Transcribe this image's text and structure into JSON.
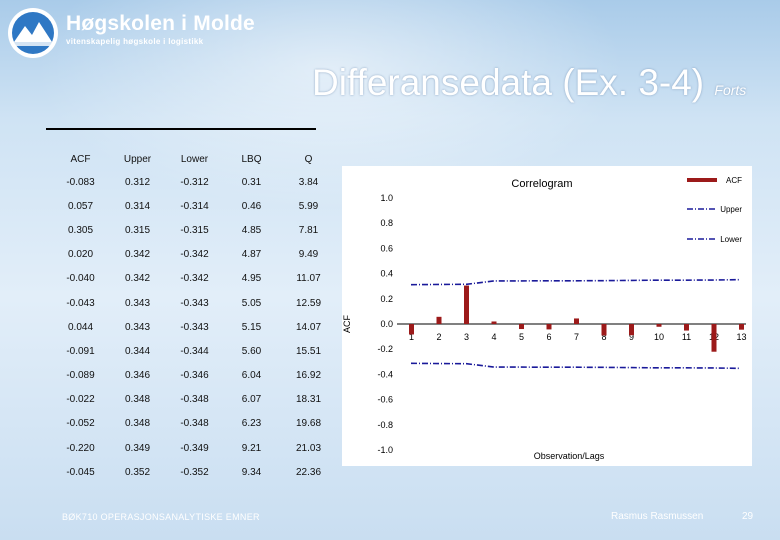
{
  "header": {
    "logo_name": "Høgskolen i Molde",
    "logo_sub": "vitenskapelig høgskole i logistikk",
    "title_main": "Differansedata (Ex. 3-4)",
    "title_suffix": "Forts"
  },
  "table": {
    "columns": [
      "ACF",
      "Upper",
      "Lower",
      "LBQ",
      "Q"
    ],
    "rows": [
      [
        "-0.083",
        "0.312",
        "-0.312",
        "0.31",
        "3.84"
      ],
      [
        "0.057",
        "0.314",
        "-0.314",
        "0.46",
        "5.99"
      ],
      [
        "0.305",
        "0.315",
        "-0.315",
        "4.85",
        "7.81"
      ],
      [
        "0.020",
        "0.342",
        "-0.342",
        "4.87",
        "9.49"
      ],
      [
        "-0.040",
        "0.342",
        "-0.342",
        "4.95",
        "11.07"
      ],
      [
        "-0.043",
        "0.343",
        "-0.343",
        "5.05",
        "12.59"
      ],
      [
        "0.044",
        "0.343",
        "-0.343",
        "5.15",
        "14.07"
      ],
      [
        "-0.091",
        "0.344",
        "-0.344",
        "5.60",
        "15.51"
      ],
      [
        "-0.089",
        "0.346",
        "-0.346",
        "6.04",
        "16.92"
      ],
      [
        "-0.022",
        "0.348",
        "-0.348",
        "6.07",
        "18.31"
      ],
      [
        "-0.052",
        "0.348",
        "-0.348",
        "6.23",
        "19.68"
      ],
      [
        "-0.220",
        "0.349",
        "-0.349",
        "9.21",
        "21.03"
      ],
      [
        "-0.045",
        "0.352",
        "-0.352",
        "9.34",
        "22.36"
      ]
    ]
  },
  "chart_data": {
    "type": "bar",
    "title": "Correlogram",
    "xlabel": "Observation/Lags",
    "ylabel": "ACF",
    "ylim": [
      -1.0,
      1.0
    ],
    "yticks": [
      "1.0",
      "0.8",
      "0.6",
      "0.4",
      "0.2",
      "0.0",
      "-0.2",
      "-0.4",
      "-0.6",
      "-0.8",
      "-1.0"
    ],
    "categories": [
      "1",
      "2",
      "3",
      "4",
      "5",
      "6",
      "7",
      "8",
      "9",
      "10",
      "11",
      "12",
      "13"
    ],
    "series": [
      {
        "name": "ACF",
        "kind": "bar",
        "values": [
          -0.083,
          0.057,
          0.305,
          0.02,
          -0.04,
          -0.043,
          0.044,
          -0.091,
          -0.089,
          -0.022,
          -0.052,
          -0.22,
          -0.045
        ]
      },
      {
        "name": "Upper",
        "kind": "line",
        "values": [
          0.312,
          0.314,
          0.315,
          0.342,
          0.342,
          0.343,
          0.343,
          0.344,
          0.346,
          0.348,
          0.348,
          0.349,
          0.352
        ]
      },
      {
        "name": "Lower",
        "kind": "line",
        "values": [
          -0.312,
          -0.314,
          -0.315,
          -0.342,
          -0.342,
          -0.343,
          -0.343,
          -0.344,
          -0.346,
          -0.348,
          -0.348,
          -0.349,
          -0.352
        ]
      }
    ],
    "colors": {
      "bar": "#9c1a1a",
      "line": "#1a1a9a"
    }
  },
  "footer": {
    "course": "BØK710 OPERASJONSANALYTISKE EMNER",
    "author": "Rasmus Rasmussen",
    "page": "29"
  }
}
